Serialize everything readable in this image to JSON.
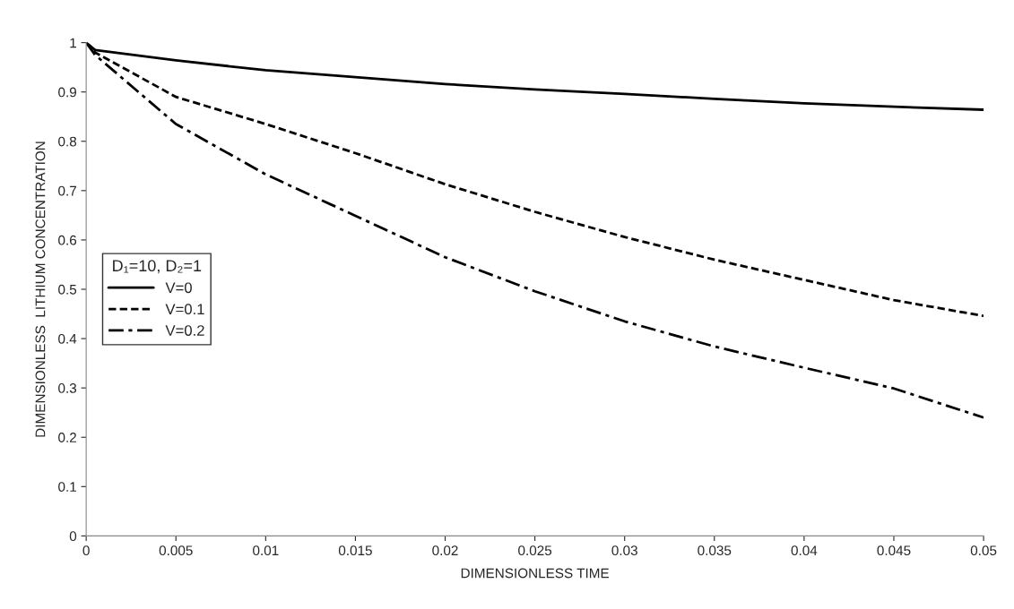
{
  "chart_data": {
    "type": "line",
    "xlabel": "DIMENSIONLESS TIME",
    "ylabel": "DIMENSIONLESS  LITHIUM CONCENTRATION",
    "legend_title": "D₁=10, D₂=1",
    "legend": "left",
    "x": [
      0,
      0.0005,
      0.005,
      0.01,
      0.015,
      0.02,
      0.025,
      0.03,
      0.035,
      0.04,
      0.045,
      0.05
    ],
    "series": [
      {
        "name": "V=0",
        "color": "#000000",
        "line_style": "solid",
        "values": [
          1,
          0.985,
          0.964,
          0.944,
          0.93,
          0.916,
          0.905,
          0.896,
          0.886,
          0.877,
          0.87,
          0.864
        ]
      },
      {
        "name": "V=0.1",
        "color": "#000000",
        "line_style": "dashed",
        "values": [
          1,
          0.98,
          0.89,
          0.835,
          0.776,
          0.713,
          0.657,
          0.606,
          0.56,
          0.519,
          0.478,
          0.446
        ]
      },
      {
        "name": "V=0.2",
        "color": "#000000",
        "line_style": "dashdot",
        "values": [
          1,
          0.975,
          0.835,
          0.733,
          0.649,
          0.565,
          0.496,
          0.435,
          0.384,
          0.341,
          0.299,
          0.24
        ]
      }
    ],
    "xlim": [
      0,
      0.05
    ],
    "ylim": [
      0,
      1
    ],
    "xticks": [
      0,
      0.005,
      0.01,
      0.015,
      0.02,
      0.025,
      0.03,
      0.035,
      0.04,
      0.045,
      0.05
    ],
    "yticks": [
      0,
      0.1,
      0.2,
      0.3,
      0.4,
      0.5,
      0.6,
      0.7,
      0.8,
      0.9,
      1
    ]
  }
}
